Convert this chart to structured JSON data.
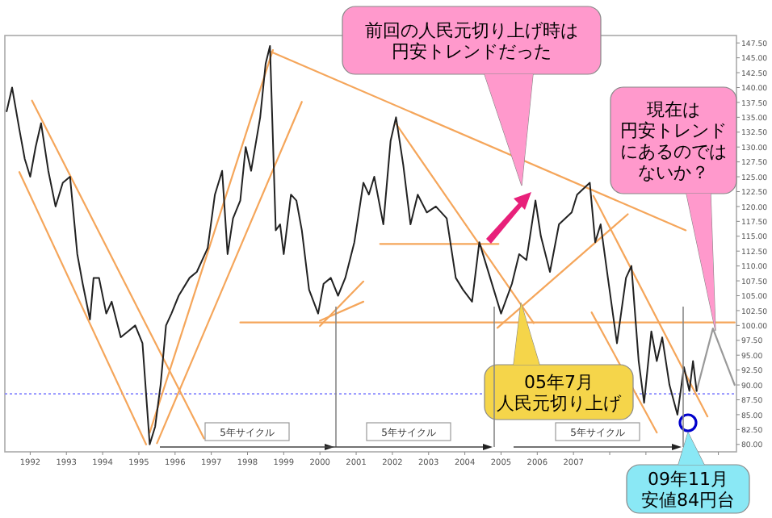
{
  "chart_data": {
    "type": "line",
    "xlim": [
      1991.3,
      2011.5
    ],
    "ylim": [
      78.75,
      148.75
    ],
    "xticks": [
      {
        "value": 1992,
        "label": "1992"
      },
      {
        "value": 1993,
        "label": "1993"
      },
      {
        "value": 1994,
        "label": "1994"
      },
      {
        "value": 1995,
        "label": "1995"
      },
      {
        "value": 1996,
        "label": "1996"
      },
      {
        "value": 1997,
        "label": "1997"
      },
      {
        "value": 1998,
        "label": "1998"
      },
      {
        "value": 1999,
        "label": "1999"
      },
      {
        "value": 2000,
        "label": "2000"
      },
      {
        "value": 2001,
        "label": "2001"
      },
      {
        "value": 2002,
        "label": "2002"
      },
      {
        "value": 2003,
        "label": "2003"
      },
      {
        "value": 2004,
        "label": "2004"
      },
      {
        "value": 2005,
        "label": "2005"
      },
      {
        "value": 2006,
        "label": "2006"
      },
      {
        "value": 2007,
        "label": "2007"
      },
      {
        "value": 2008,
        "label": null
      },
      {
        "value": 2009,
        "label": null
      },
      {
        "value": 2010,
        "label": null
      },
      {
        "value": 2011,
        "label": null
      }
    ],
    "yticks": [
      {
        "value": 80,
        "label": "80.00"
      },
      {
        "value": 82.5,
        "label": "82.50"
      },
      {
        "value": 85,
        "label": "85.00"
      },
      {
        "value": 87.5,
        "label": "87.50"
      },
      {
        "value": 90,
        "label": "90.00"
      },
      {
        "value": 92.5,
        "label": "92.50"
      },
      {
        "value": 95,
        "label": "95.00"
      },
      {
        "value": 97.5,
        "label": "97.50"
      },
      {
        "value": 100,
        "label": "100.00"
      },
      {
        "value": 102.5,
        "label": "102.50"
      },
      {
        "value": 105,
        "label": "105.00"
      },
      {
        "value": 107.5,
        "label": "107.50"
      },
      {
        "value": 110,
        "label": "110.00"
      },
      {
        "value": 112.5,
        "label": "112.50"
      },
      {
        "value": 115,
        "label": "115.00"
      },
      {
        "value": 117.5,
        "label": "117.50"
      },
      {
        "value": 120,
        "label": "120.00"
      },
      {
        "value": 122.5,
        "label": "122.50"
      },
      {
        "value": 125,
        "label": "125.00"
      },
      {
        "value": 127.5,
        "label": "127.50"
      },
      {
        "value": 130,
        "label": "130.00"
      },
      {
        "value": 132.5,
        "label": "132.50"
      },
      {
        "value": 135,
        "label": "135.00"
      },
      {
        "value": 137.5,
        "label": "137.50"
      },
      {
        "value": 140,
        "label": "140.00"
      },
      {
        "value": 142.5,
        "label": "142.50"
      },
      {
        "value": 145,
        "label": "145.00"
      },
      {
        "value": 147.5,
        "label": "147.50"
      }
    ],
    "grid": false,
    "series": [
      {
        "color": "#222222",
        "x": [
          1991.35,
          1991.5,
          1991.7,
          1991.85,
          1992.0,
          1992.15,
          1992.3,
          1992.5,
          1992.7,
          1992.9,
          1993.1,
          1993.3,
          1993.45,
          1993.65,
          1993.75,
          1993.9,
          1994.1,
          1994.25,
          1994.5,
          1994.7,
          1994.9,
          1995.1,
          1995.3,
          1995.45,
          1995.6,
          1995.75,
          1995.9,
          1996.1,
          1996.4,
          1996.6,
          1996.9,
          1997.1,
          1997.3,
          1997.45,
          1997.6,
          1997.8,
          1997.95,
          1998.1,
          1998.35,
          1998.5,
          1998.62,
          1998.78,
          1998.9,
          1999.0,
          1999.2,
          1999.35,
          1999.5,
          1999.7,
          1999.95,
          2000.1,
          2000.3,
          2000.5,
          2000.7,
          2000.95,
          2001.2,
          2001.35,
          2001.5,
          2001.75,
          2001.95,
          2002.1,
          2002.3,
          2002.5,
          2002.7,
          2002.95,
          2003.2,
          2003.5,
          2003.75,
          2003.95,
          2004.2,
          2004.4,
          2004.6,
          2004.8,
          2005.0,
          2005.3,
          2005.5,
          2005.7,
          2005.95,
          2006.1,
          2006.35,
          2006.6,
          2006.95,
          2007.1,
          2007.45,
          2007.6,
          2007.75,
          2007.95,
          2008.2,
          2008.45,
          2008.6,
          2008.8,
          2008.95,
          2009.15,
          2009.3,
          2009.45,
          2009.65,
          2009.87,
          2010.05,
          2010.2,
          2010.3,
          2010.4
        ],
        "values": [
          136,
          140,
          133,
          128,
          125,
          130,
          134,
          126,
          120,
          124,
          125,
          112,
          107,
          101,
          108,
          108,
          102,
          104,
          98,
          99,
          100,
          97,
          80,
          83,
          90,
          100,
          102,
          105,
          108,
          109,
          113,
          122,
          126,
          112,
          118,
          121,
          130,
          126,
          135,
          144,
          147,
          116,
          117,
          112,
          122,
          121,
          116,
          106,
          102,
          107,
          108,
          105,
          108,
          114,
          124,
          122,
          125,
          117,
          131,
          135,
          127,
          117,
          122,
          119,
          120,
          118,
          108,
          106,
          104,
          114,
          110,
          106,
          102,
          107,
          112,
          111,
          121,
          115,
          109,
          117,
          119,
          122,
          124,
          114,
          117,
          108,
          97,
          108,
          110,
          94,
          87,
          99,
          94,
          98,
          90,
          85,
          93,
          89,
          94,
          89
        ]
      },
      {
        "color": "#999999",
        "x": [
          2010.4,
          2010.85,
          2011.45
        ],
        "values": [
          89,
          99.5,
          90
        ]
      },
      {
        "color": "#f5a65b",
        "x": [
          1998.65,
          2010.1
        ],
        "values": [
          146,
          116
        ]
      },
      {
        "color": "#f5a65b",
        "x": [
          1997.8,
          2011.45
        ],
        "values": [
          100.5,
          100.5
        ]
      },
      {
        "color": "#f5a65b",
        "x": [
          1991.7,
          1995.2
        ],
        "values": [
          125.8,
          80
        ]
      },
      {
        "color": "#f5a65b",
        "x": [
          1992.05,
          1996.8
        ],
        "values": [
          137.8,
          81
        ]
      },
      {
        "color": "#f5a65b",
        "x": [
          1995.3,
          1998.7
        ],
        "values": [
          82,
          146.3
        ]
      },
      {
        "color": "#f5a65b",
        "x": [
          1995.5,
          1999.5
        ],
        "values": [
          80.2,
          137.6
        ]
      },
      {
        "color": "#f5a65b",
        "x": [
          2002.1,
          2005.9
        ],
        "values": [
          133.9,
          100.4
        ]
      },
      {
        "color": "#f5a65b",
        "x": [
          2001.66,
          2004.93
        ],
        "values": [
          113.7,
          113.7
        ]
      },
      {
        "color": "#f5a65b",
        "x": [
          2004.9,
          2008.5
        ],
        "values": [
          99.6,
          118.7
        ]
      },
      {
        "color": "#f5a65b",
        "x": [
          2007.55,
          2010.7
        ],
        "values": [
          121.8,
          84.7
        ]
      },
      {
        "color": "#f5a65b",
        "x": [
          2007.5,
          2009.3
        ],
        "values": [
          102.2,
          82
        ]
      },
      {
        "color": "#f5a65b",
        "x": [
          2000.0,
          2001.2
        ],
        "values": [
          99.9,
          107.4
        ]
      },
      {
        "color": "#f5a65b",
        "x": [
          2000.0,
          2001.2
        ],
        "values": [
          100.8,
          104
        ]
      }
    ],
    "ref_lines": [
      {
        "axis": "y",
        "value": 88.5,
        "color": "#8888ff",
        "line_style": "dotted"
      }
    ],
    "annotations": [
      "前回の人民元切り上げ時は円安トレンドだった",
      "現在は円安トレンドにあるのではないか？",
      {
        "text": "05年7月人民元切り上げ",
        "x": 2005.55,
        "y": 103.8
      },
      "09年11月安値84円台",
      "5年サイクル",
      "5年サイクル",
      "5年サイクル"
    ]
  }
}
